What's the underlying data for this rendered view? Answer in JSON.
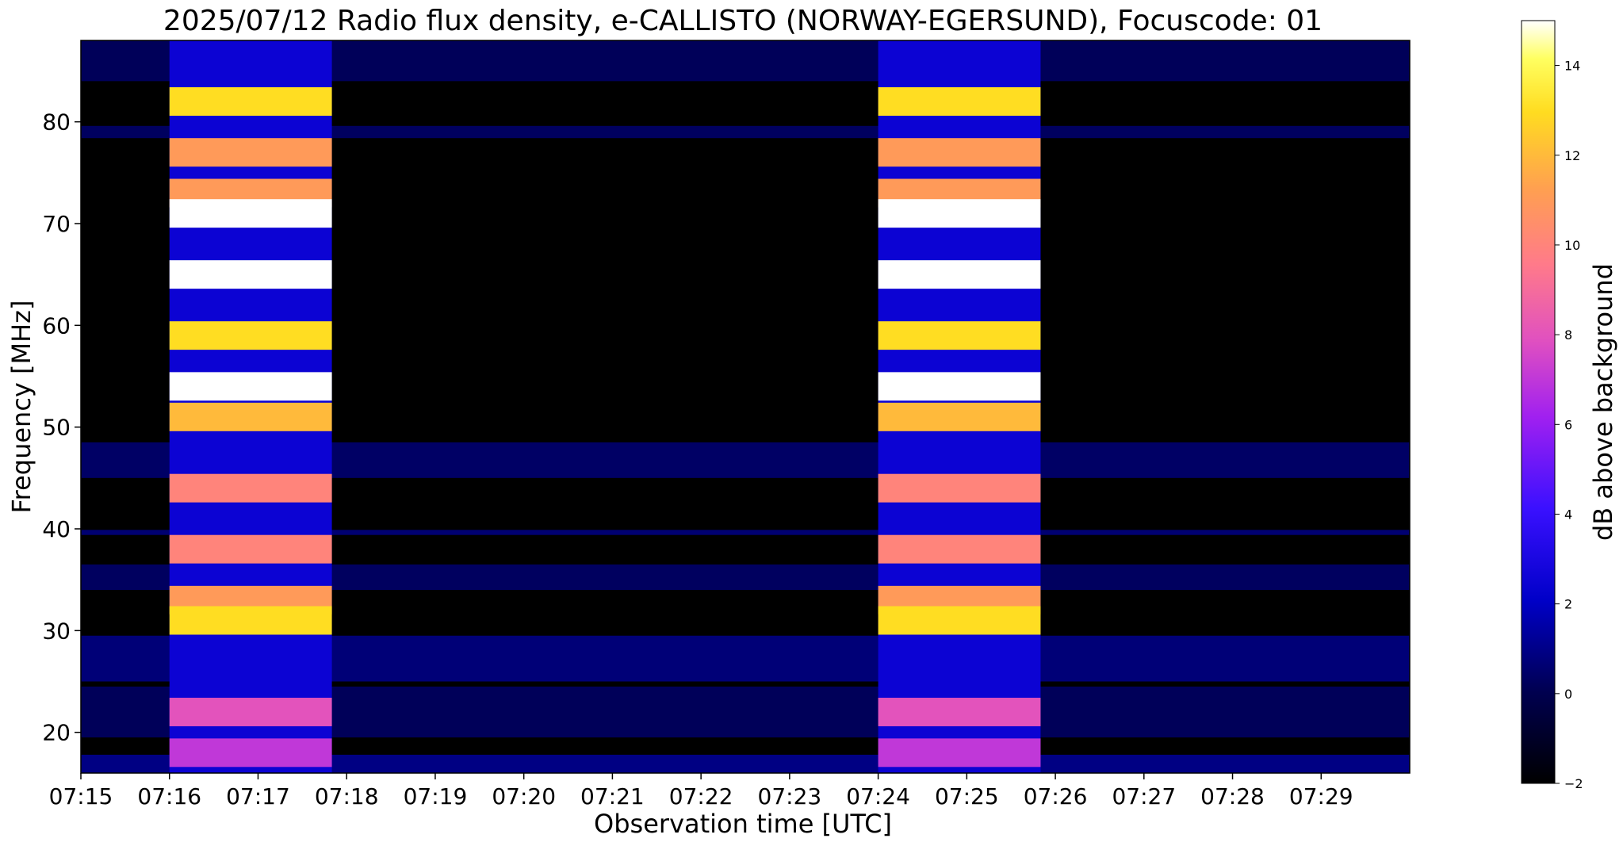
{
  "chart_data": {
    "type": "heatmap",
    "title": "2025/07/12  Radio flux density, e-CALLISTO (NORWAY-EGERSUND), Focuscode: 01",
    "xlabel": "Observation time [UTC]",
    "ylabel": "Frequency [MHz]",
    "x_ticks": [
      "07:15",
      "07:16",
      "07:17",
      "07:18",
      "07:19",
      "07:20",
      "07:21",
      "07:22",
      "07:23",
      "07:24",
      "07:25",
      "07:26",
      "07:27",
      "07:28",
      "07:29"
    ],
    "y_ticks": [
      "20",
      "30",
      "40",
      "50",
      "60",
      "70",
      "80"
    ],
    "xlim": [
      "07:15",
      "07:30"
    ],
    "ylim": [
      16,
      88
    ],
    "colorbar": {
      "label": "dB above background",
      "range": [
        -2,
        15
      ],
      "ticks": [
        "−2",
        "0",
        "2",
        "4",
        "6",
        "8",
        "10",
        "12",
        "14"
      ],
      "colormap": "gnuplot2"
    },
    "burst_intervals": [
      {
        "start": "07:16:00",
        "end": "07:17:50"
      },
      {
        "start": "07:24:00",
        "end": "07:25:50"
      }
    ],
    "burst_band_peaks_db": [
      {
        "freq_mhz": 82,
        "db": 13
      },
      {
        "freq_mhz": 77,
        "db": 11
      },
      {
        "freq_mhz": 73,
        "db": 11
      },
      {
        "freq_mhz": 71,
        "db": 15
      },
      {
        "freq_mhz": 65,
        "db": 15
      },
      {
        "freq_mhz": 59,
        "db": 13
      },
      {
        "freq_mhz": 54,
        "db": 15
      },
      {
        "freq_mhz": 51,
        "db": 12
      },
      {
        "freq_mhz": 44,
        "db": 10
      },
      {
        "freq_mhz": 38,
        "db": 10
      },
      {
        "freq_mhz": 33,
        "db": 11
      },
      {
        "freq_mhz": 31,
        "db": 13
      },
      {
        "freq_mhz": 22,
        "db": 8
      },
      {
        "freq_mhz": 18,
        "db": 7
      }
    ]
  }
}
